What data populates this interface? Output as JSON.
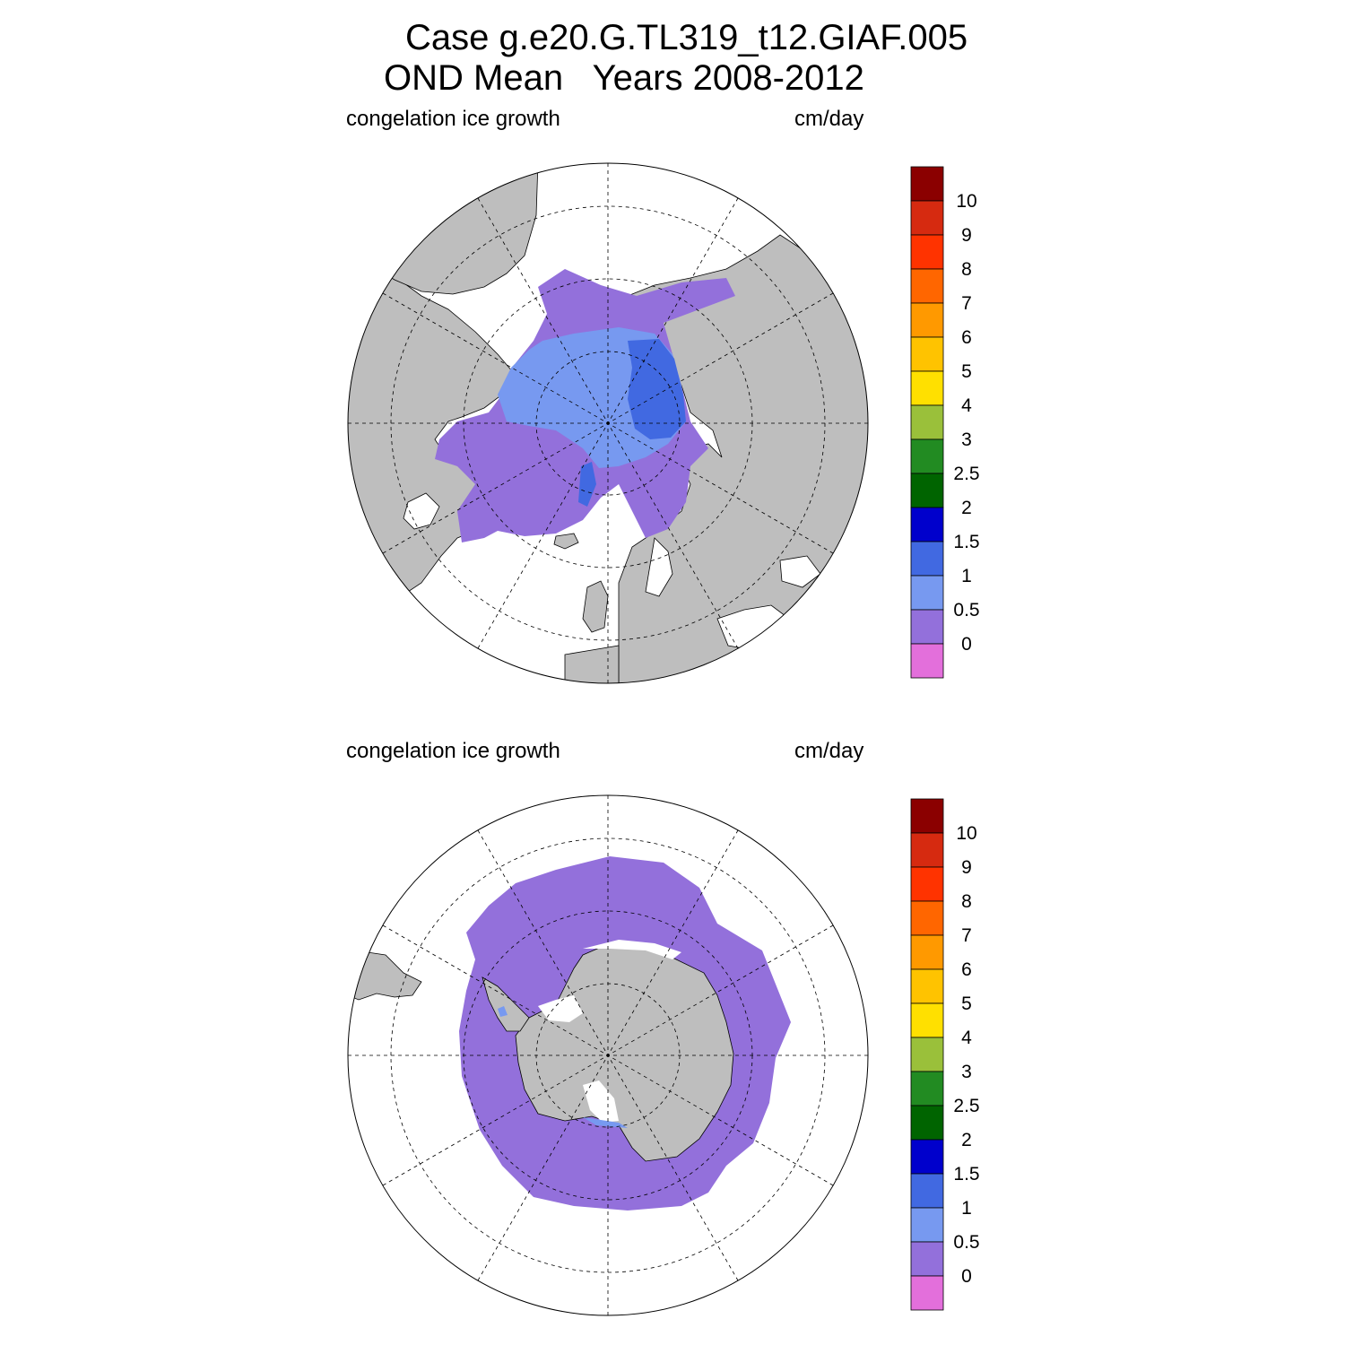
{
  "title": {
    "line1": "Case g.e20.G.TL319_t12.GIAF.005",
    "line2": "OND Mean   Years 2008-2012"
  },
  "panels": [
    {
      "id": "north",
      "variable_label": "congelation ice growth",
      "units_label": "cm/day",
      "hemisphere": "Northern",
      "colorbar_labels": [
        "10",
        "9",
        "8",
        "7",
        "6",
        "5",
        "4",
        "3",
        "2.5",
        "2",
        "1.5",
        "1",
        "0.5",
        "0"
      ]
    },
    {
      "id": "south",
      "variable_label": "congelation ice growth",
      "units_label": "cm/day",
      "hemisphere": "Southern",
      "colorbar_labels": [
        "10",
        "9",
        "8",
        "7",
        "6",
        "5",
        "4",
        "3",
        "2.5",
        "2",
        "1.5",
        "1",
        "0.5",
        "0"
      ]
    }
  ],
  "colorbar_colors": [
    "#8b0000",
    "#d62a10",
    "#ff3300",
    "#ff6600",
    "#ff9900",
    "#ffc300",
    "#ffe000",
    "#9ac03a",
    "#228b22",
    "#006400",
    "#0000cc",
    "#4169e1",
    "#7799f0",
    "#9370db",
    "#e36fdb"
  ],
  "colors": {
    "land": "#bebebe",
    "ocean": "#ffffff",
    "ice_low": "#9370db",
    "ice_mid": "#7799f0",
    "ice_high": "#4169e1"
  }
}
